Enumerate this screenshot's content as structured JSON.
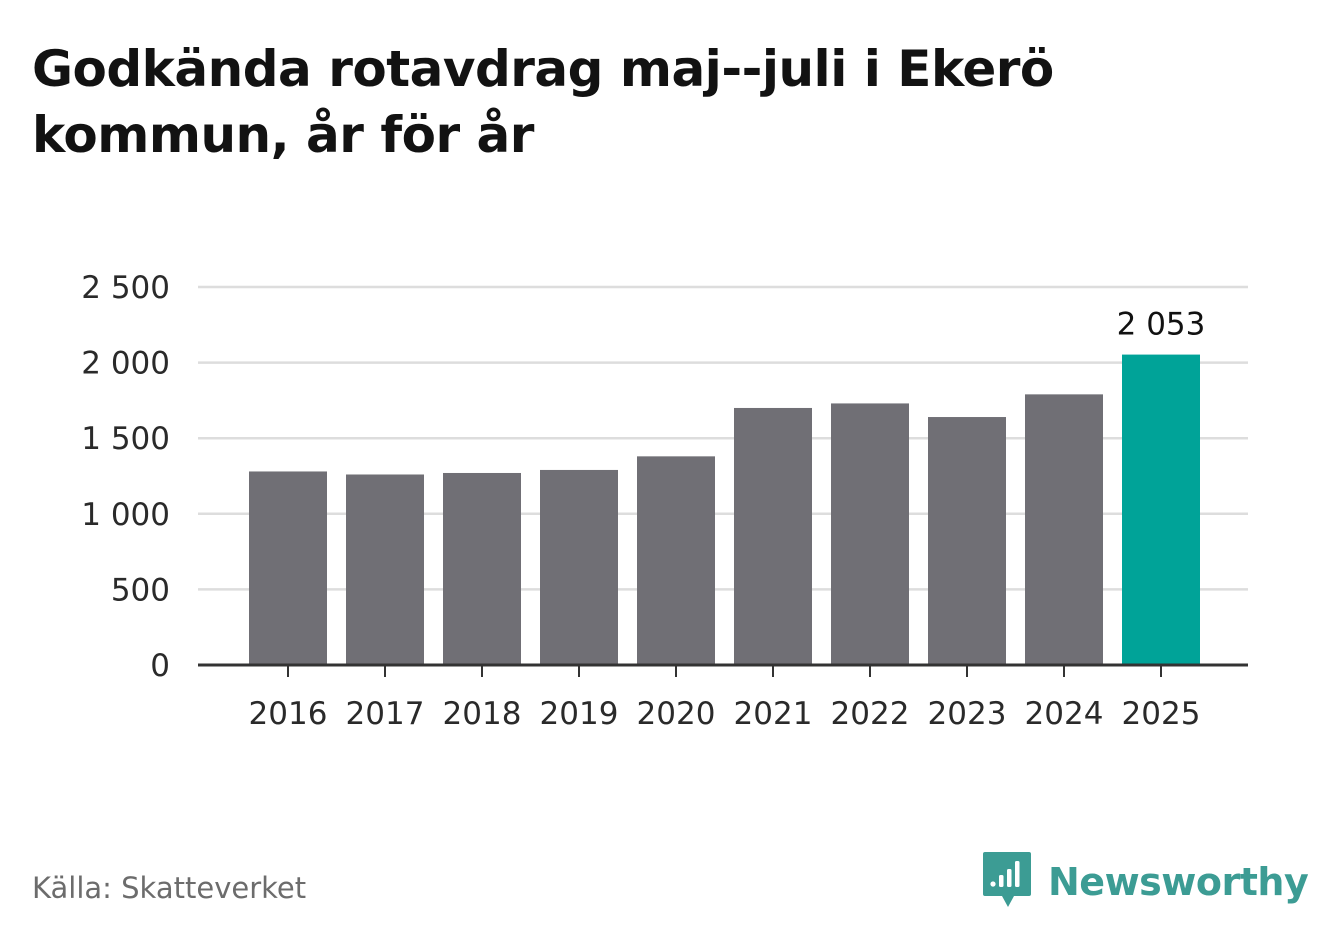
{
  "title": "Godkända rotavdrag maj--juli i Ekerö kommun, år för år",
  "source": "Källa: Skatteverket",
  "brand": {
    "name": "Newsworthy",
    "icon": "newsworthy-logo-icon",
    "color": "#3c9c94"
  },
  "colors": {
    "bar_default": "#706f75",
    "bar_highlight": "#00a398",
    "grid": "#dddddd",
    "axis": "#333333"
  },
  "chart_data": {
    "type": "bar",
    "title": "Godkända rotavdrag maj--juli i Ekerö kommun, år för år",
    "xlabel": "",
    "ylabel": "",
    "categories": [
      "2016",
      "2017",
      "2018",
      "2019",
      "2020",
      "2021",
      "2022",
      "2023",
      "2024",
      "2025"
    ],
    "values": [
      1280,
      1260,
      1270,
      1290,
      1380,
      1700,
      1730,
      1640,
      1790,
      2053
    ],
    "highlight_index": 9,
    "data_labels": [
      {
        "index": 9,
        "text": "2 053"
      }
    ],
    "ylim": [
      0,
      2500
    ],
    "yticks": [
      {
        "value": 0,
        "label": "0"
      },
      {
        "value": 500,
        "label": "500"
      },
      {
        "value": 1000,
        "label": "1 000"
      },
      {
        "value": 1500,
        "label": "1 500"
      },
      {
        "value": 2000,
        "label": "2 000"
      },
      {
        "value": 2500,
        "label": "2 500"
      }
    ],
    "grid": true,
    "legend": "none"
  }
}
